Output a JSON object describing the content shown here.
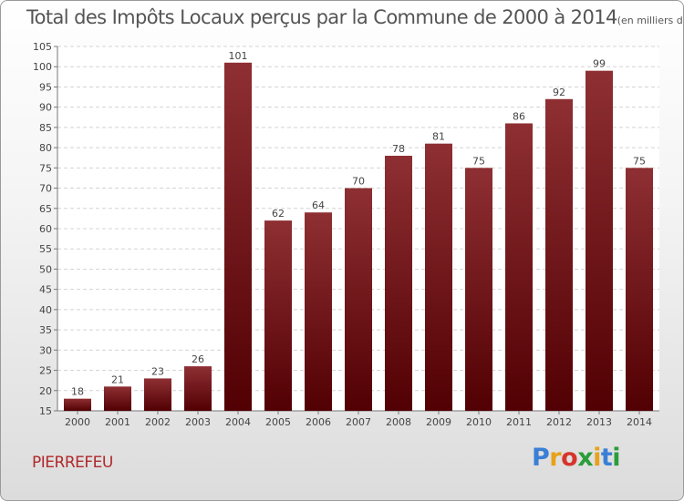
{
  "title": "Total des Impôts Locaux perçus par la Commune de 2000 à 2014",
  "unit_note": "(en milliers d'€)",
  "commune": "PIERREFEU",
  "logo": {
    "text": "Proxiti",
    "colors": [
      "#3a7fd5",
      "#e8a11b",
      "#d6352b",
      "#2a9d3a",
      "#e8a11b",
      "#3a7fd5",
      "#2a9d3a"
    ]
  },
  "chart_data": {
    "type": "bar",
    "title": "Total des Impôts Locaux perçus par la Commune de 2000 à 2014",
    "categories": [
      "2000",
      "2001",
      "2002",
      "2003",
      "2004",
      "2005",
      "2006",
      "2007",
      "2008",
      "2009",
      "2010",
      "2011",
      "2012",
      "2013",
      "2014"
    ],
    "values": [
      18,
      21,
      23,
      26,
      101,
      62,
      64,
      70,
      78,
      81,
      75,
      86,
      92,
      99,
      75
    ],
    "ylim": [
      15,
      105
    ],
    "yticks": [
      15,
      20,
      25,
      30,
      35,
      40,
      45,
      50,
      55,
      60,
      65,
      70,
      75,
      80,
      85,
      90,
      95,
      100,
      105
    ],
    "grid": true,
    "bar_color": "#6e0f13"
  }
}
